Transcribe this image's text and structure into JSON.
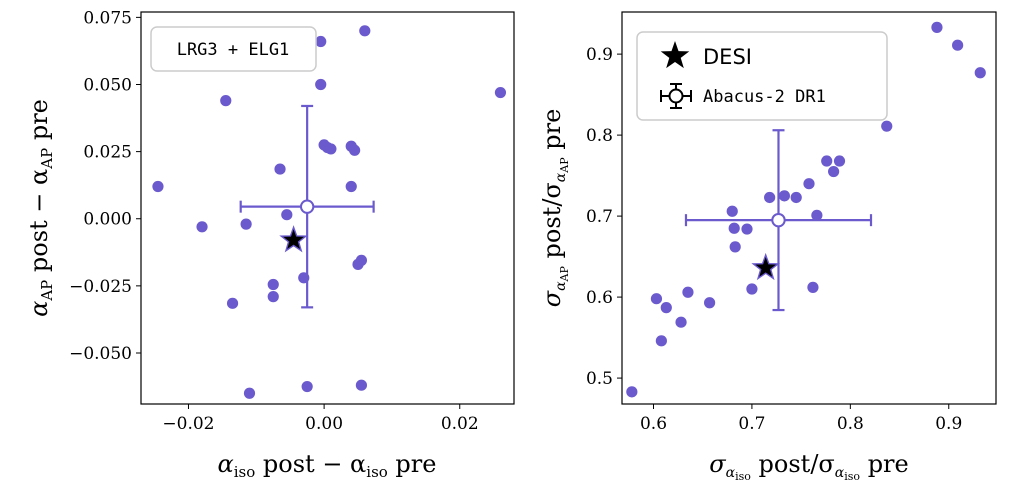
{
  "colors": {
    "point": "#6a5acd",
    "err": "#6a5acd",
    "star": "#000000"
  },
  "chart_data": [
    {
      "type": "scatter",
      "legend": {
        "label": "LRG3 + ELG1",
        "placement": "top-left"
      },
      "xlabel": {
        "main": "α",
        "sub": "iso",
        "rest": " post − α",
        "sub2": "iso",
        "rest2": " pre"
      },
      "ylabel": {
        "main": "α",
        "sub": "AP",
        "rest": " post − α",
        "sub2": "AP",
        "rest2": " pre"
      },
      "xlim": [
        -0.027,
        0.028
      ],
      "ylim": [
        -0.069,
        0.077
      ],
      "xticks": [
        -0.02,
        0.0,
        0.02
      ],
      "xtick_labels": [
        "−0.02",
        "0.00",
        "0.02"
      ],
      "yticks": [
        -0.05,
        -0.025,
        0.0,
        0.025,
        0.05,
        0.075
      ],
      "ytick_labels": [
        "−0.050",
        "−0.025",
        "0.000",
        "0.025",
        "0.050",
        "0.075"
      ],
      "points": [
        {
          "x": -0.0245,
          "y": 0.012
        },
        {
          "x": -0.018,
          "y": -0.003
        },
        {
          "x": -0.0145,
          "y": 0.044
        },
        {
          "x": -0.0135,
          "y": -0.0315
        },
        {
          "x": -0.0115,
          "y": -0.002
        },
        {
          "x": -0.011,
          "y": -0.065
        },
        {
          "x": -0.0075,
          "y": -0.029
        },
        {
          "x": -0.0075,
          "y": -0.0245
        },
        {
          "x": -0.0065,
          "y": 0.0185
        },
        {
          "x": -0.0055,
          "y": 0.0015
        },
        {
          "x": -0.003,
          "y": -0.022
        },
        {
          "x": -0.0025,
          "y": -0.0625
        },
        {
          "x": -0.0005,
          "y": 0.066
        },
        {
          "x": -0.0005,
          "y": 0.05
        },
        {
          "x": 0.0,
          "y": 0.0275
        },
        {
          "x": 0.0005,
          "y": 0.0265
        },
        {
          "x": 0.001,
          "y": 0.026
        },
        {
          "x": 0.004,
          "y": 0.027
        },
        {
          "x": 0.0045,
          "y": 0.0255
        },
        {
          "x": 0.004,
          "y": 0.012
        },
        {
          "x": 0.005,
          "y": -0.017
        },
        {
          "x": 0.0055,
          "y": -0.0155
        },
        {
          "x": 0.0055,
          "y": -0.062
        },
        {
          "x": 0.006,
          "y": 0.07
        },
        {
          "x": 0.026,
          "y": 0.047
        }
      ],
      "mean": {
        "x": -0.0025,
        "y": 0.0045,
        "xerr": 0.0098,
        "yerr": 0.0375
      },
      "star": {
        "x": -0.0045,
        "y": -0.008
      }
    },
    {
      "type": "scatter",
      "legend": {
        "entries": [
          "DESI",
          "Abacus-2 DR1"
        ],
        "placement": "top-left"
      },
      "xlabel": {
        "main": "σ",
        "sub": "α",
        "subsub": "iso",
        "rest": " post/σ",
        "sub2": "α",
        "subsub2": "iso",
        "rest2": " pre"
      },
      "ylabel": {
        "main": "σ",
        "sub": "α",
        "subsub": "AP",
        "rest": " post/σ",
        "sub2": "α",
        "subsub2": "AP",
        "rest2": " pre"
      },
      "xlim": [
        0.568,
        0.948
      ],
      "ylim": [
        0.468,
        0.952
      ],
      "xticks": [
        0.6,
        0.7,
        0.8,
        0.9
      ],
      "xtick_labels": [
        "0.6",
        "0.7",
        "0.8",
        "0.9"
      ],
      "yticks": [
        0.5,
        0.6,
        0.7,
        0.8,
        0.9
      ],
      "ytick_labels": [
        "0.5",
        "0.6",
        "0.7",
        "0.8",
        "0.9"
      ],
      "points": [
        {
          "x": 0.578,
          "y": 0.483
        },
        {
          "x": 0.603,
          "y": 0.598
        },
        {
          "x": 0.608,
          "y": 0.546
        },
        {
          "x": 0.613,
          "y": 0.587
        },
        {
          "x": 0.628,
          "y": 0.569
        },
        {
          "x": 0.635,
          "y": 0.606
        },
        {
          "x": 0.657,
          "y": 0.593
        },
        {
          "x": 0.68,
          "y": 0.706
        },
        {
          "x": 0.682,
          "y": 0.685
        },
        {
          "x": 0.683,
          "y": 0.662
        },
        {
          "x": 0.695,
          "y": 0.684
        },
        {
          "x": 0.7,
          "y": 0.61
        },
        {
          "x": 0.718,
          "y": 0.723
        },
        {
          "x": 0.733,
          "y": 0.725
        },
        {
          "x": 0.745,
          "y": 0.723
        },
        {
          "x": 0.758,
          "y": 0.74
        },
        {
          "x": 0.762,
          "y": 0.612
        },
        {
          "x": 0.766,
          "y": 0.701
        },
        {
          "x": 0.776,
          "y": 0.768
        },
        {
          "x": 0.783,
          "y": 0.755
        },
        {
          "x": 0.789,
          "y": 0.768
        },
        {
          "x": 0.837,
          "y": 0.811
        },
        {
          "x": 0.888,
          "y": 0.933
        },
        {
          "x": 0.909,
          "y": 0.911
        },
        {
          "x": 0.932,
          "y": 0.877
        }
      ],
      "mean": {
        "x": 0.727,
        "y": 0.695,
        "xerr": 0.094,
        "yerr": 0.111
      },
      "star": {
        "x": 0.714,
        "y": 0.636
      }
    }
  ]
}
